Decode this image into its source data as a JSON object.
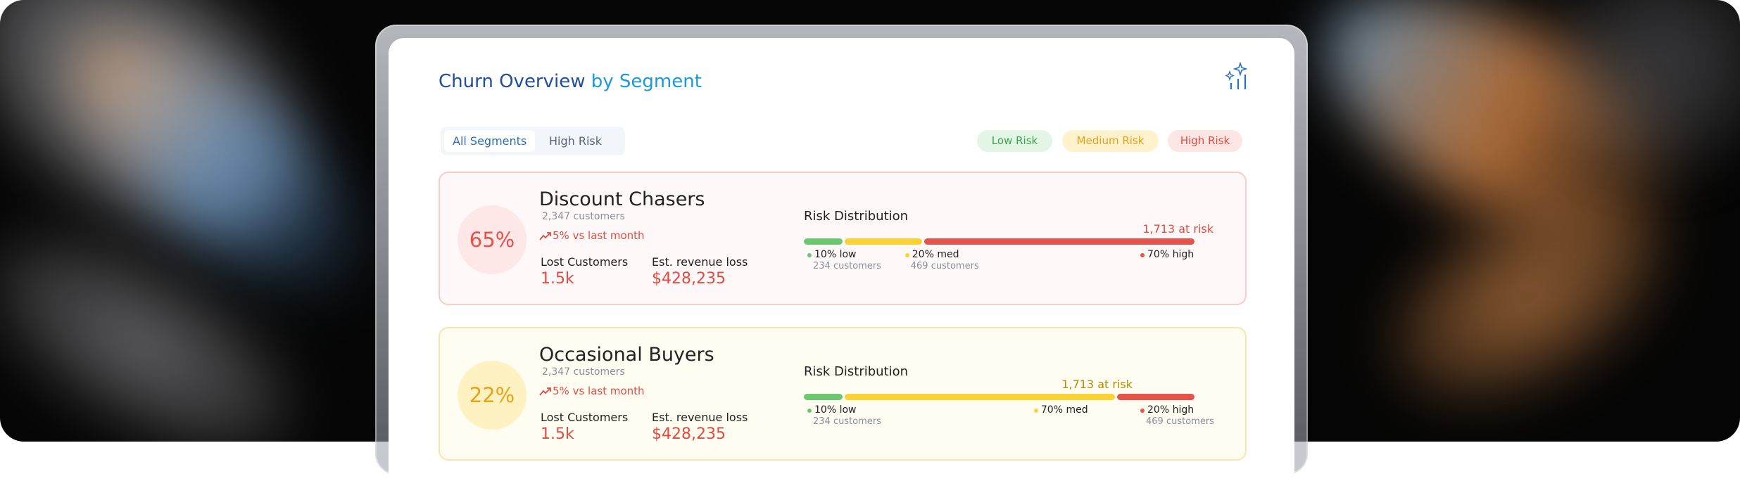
{
  "header": {
    "title": "Churn Overview",
    "subtitle": "by Segment"
  },
  "tabs": [
    "All Segments",
    "High Risk"
  ],
  "legend": [
    "Low Risk",
    "Medium Risk",
    "High Risk"
  ],
  "segments": [
    {
      "rate": "65%",
      "name": "Discount Chasers",
      "customers": "2,347 customers",
      "trend": "5% vs last month",
      "lost_label": "Lost Customers",
      "lost_value": "1.5k",
      "revenue_label": "Est. revenue loss",
      "revenue_value": "$428,235",
      "distribution_title": "Risk Distribution",
      "at_risk": "1,713 at risk",
      "distribution": [
        {
          "share": 10,
          "label": "10% low",
          "customers": "234 customers"
        },
        {
          "share": 20,
          "label": "20% med",
          "customers": "469 customers"
        },
        {
          "share": 70,
          "label": "70% high"
        }
      ]
    },
    {
      "rate": "22%",
      "name": "Occasional Buyers",
      "customers": "2,347 customers",
      "trend": "5% vs last month",
      "lost_label": "Lost Customers",
      "lost_value": "1.5k",
      "revenue_label": "Est. revenue loss",
      "revenue_value": "$428,235",
      "distribution_title": "Risk Distribution",
      "at_risk": "1,713 at risk",
      "distribution": [
        {
          "share": 10,
          "label": "10% low",
          "customers": "234 customers"
        },
        {
          "share": 70,
          "label": "70% med"
        },
        {
          "share": 20,
          "label": "20% high",
          "customers": "469 customers"
        }
      ]
    }
  ]
}
